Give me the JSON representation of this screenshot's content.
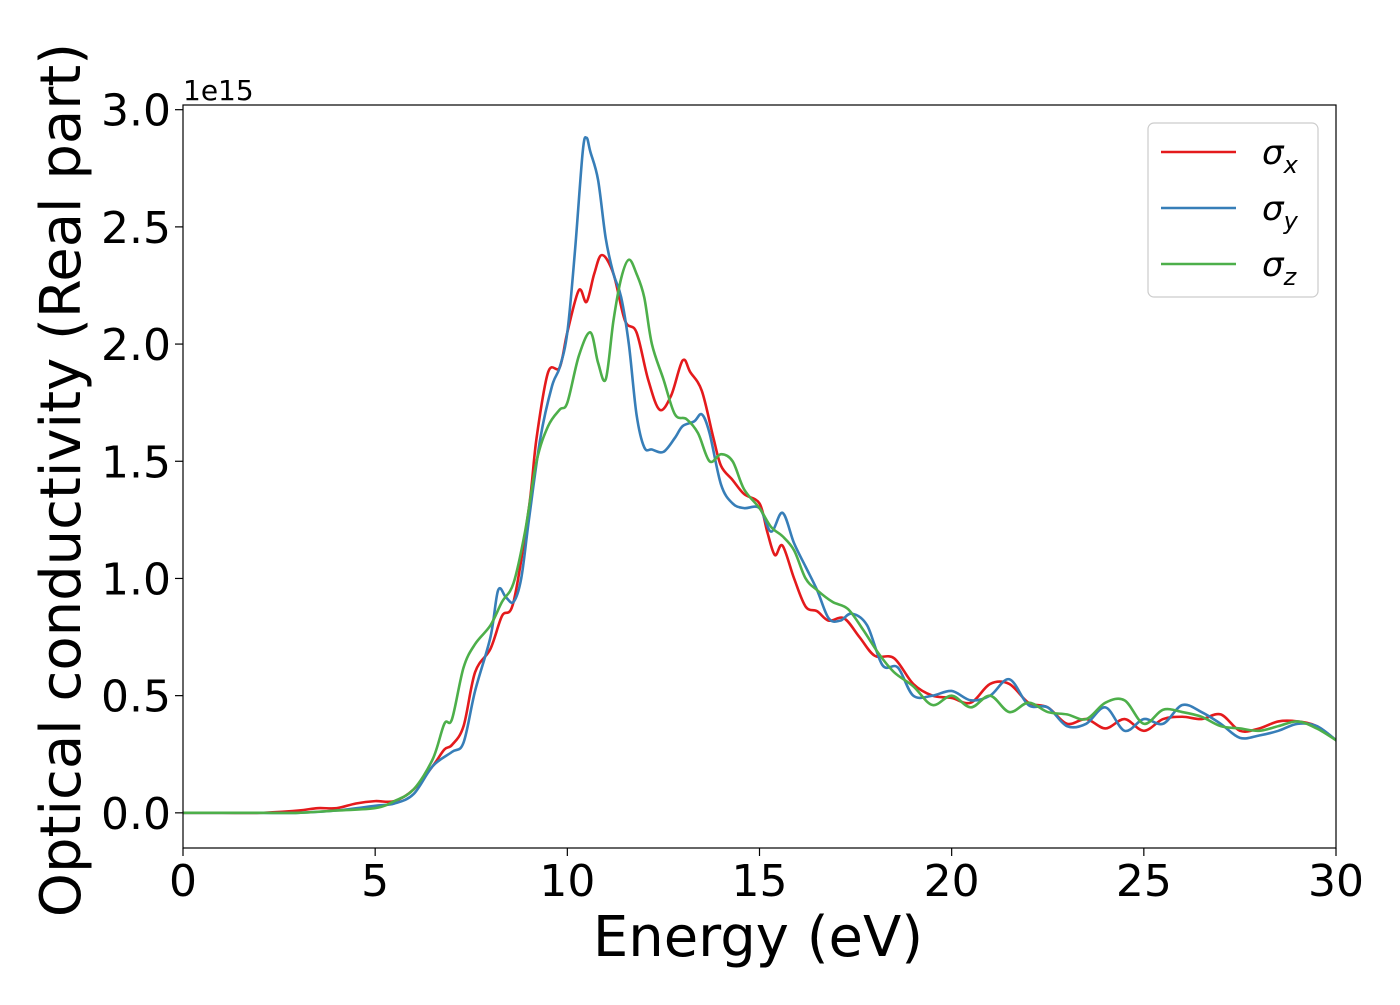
{
  "chart_data": {
    "type": "line",
    "title": "",
    "xlabel": "Energy (eV)",
    "ylabel": "Optical conductivity (Real part)",
    "y_offset_label": "1e15",
    "y_scale": 1000000000000000.0,
    "xlim": [
      0,
      30
    ],
    "ylim": [
      -0.15,
      3.02
    ],
    "xticks": [
      0,
      5,
      10,
      15,
      20,
      25,
      30
    ],
    "xtick_labels": [
      "0",
      "5",
      "10",
      "15",
      "20",
      "25",
      "30"
    ],
    "yticks": [
      0.0,
      0.5,
      1.0,
      1.5,
      2.0,
      2.5,
      3.0
    ],
    "ytick_labels": [
      "0.0",
      "0.5",
      "1.0",
      "1.5",
      "2.0",
      "2.5",
      "3.0"
    ],
    "grid": false,
    "legend_position": "top-right",
    "series": [
      {
        "name": "σ_x",
        "legend_base": "σ",
        "legend_sub": "x",
        "color": "#e41a1c",
        "x": [
          0,
          1,
          2,
          3,
          3.5,
          4,
          4.5,
          5,
          5.5,
          6,
          6.5,
          6.8,
          7,
          7.3,
          7.6,
          8,
          8.3,
          8.6,
          9,
          9.2,
          9.5,
          9.8,
          10,
          10.3,
          10.5,
          10.7,
          10.9,
          11.2,
          11.5,
          11.8,
          12.1,
          12.4,
          12.7,
          13,
          13.2,
          13.5,
          13.8,
          14,
          14.3,
          14.6,
          15,
          15.2,
          15.4,
          15.6,
          15.9,
          16.2,
          16.5,
          16.8,
          17.2,
          17.6,
          18,
          18.5,
          19,
          19.5,
          20,
          20.5,
          21,
          21.5,
          22,
          22.5,
          23,
          23.5,
          24,
          24.5,
          25,
          25.5,
          26,
          26.5,
          27,
          27.5,
          28,
          28.5,
          29,
          29.5,
          30
        ],
        "y": [
          0,
          0,
          0,
          0.01,
          0.02,
          0.02,
          0.04,
          0.05,
          0.05,
          0.1,
          0.2,
          0.27,
          0.29,
          0.37,
          0.6,
          0.7,
          0.84,
          0.9,
          1.3,
          1.6,
          1.88,
          1.9,
          2.05,
          2.23,
          2.18,
          2.3,
          2.38,
          2.3,
          2.1,
          2.05,
          1.85,
          1.72,
          1.78,
          1.93,
          1.88,
          1.8,
          1.6,
          1.48,
          1.42,
          1.36,
          1.32,
          1.2,
          1.1,
          1.14,
          1.0,
          0.88,
          0.86,
          0.82,
          0.83,
          0.75,
          0.67,
          0.66,
          0.55,
          0.5,
          0.49,
          0.47,
          0.55,
          0.55,
          0.47,
          0.45,
          0.38,
          0.4,
          0.36,
          0.4,
          0.35,
          0.4,
          0.41,
          0.4,
          0.42,
          0.35,
          0.36,
          0.39,
          0.39,
          0.37,
          0.31
        ]
      },
      {
        "name": "σ_y",
        "legend_base": "σ",
        "legend_sub": "y",
        "color": "#377eb8",
        "x": [
          0,
          1,
          2,
          3,
          4,
          5,
          5.5,
          6,
          6.5,
          7,
          7.3,
          7.6,
          8,
          8.2,
          8.4,
          8.6,
          8.8,
          9,
          9.3,
          9.6,
          9.8,
          10,
          10.2,
          10.4,
          10.5,
          10.6,
          10.8,
          11,
          11.2,
          11.4,
          11.6,
          11.8,
          12,
          12.2,
          12.5,
          12.8,
          13,
          13.3,
          13.5,
          13.7,
          14,
          14.3,
          14.6,
          15,
          15.3,
          15.6,
          15.9,
          16.2,
          16.5,
          16.8,
          17.1,
          17.4,
          17.8,
          18.2,
          18.6,
          19,
          19.5,
          20,
          20.5,
          21,
          21.5,
          22,
          22.5,
          23,
          23.5,
          24,
          24.5,
          25,
          25.5,
          26,
          26.5,
          27,
          27.5,
          28,
          28.5,
          29,
          29.5,
          30
        ],
        "y": [
          0,
          0,
          0,
          0,
          0.01,
          0.03,
          0.04,
          0.08,
          0.2,
          0.26,
          0.3,
          0.52,
          0.75,
          0.95,
          0.92,
          0.9,
          1.0,
          1.25,
          1.6,
          1.82,
          1.9,
          2.05,
          2.4,
          2.82,
          2.88,
          2.82,
          2.7,
          2.45,
          2.3,
          2.2,
          2.0,
          1.7,
          1.56,
          1.55,
          1.54,
          1.6,
          1.65,
          1.67,
          1.7,
          1.62,
          1.4,
          1.32,
          1.3,
          1.3,
          1.2,
          1.28,
          1.15,
          1.05,
          0.95,
          0.83,
          0.82,
          0.85,
          0.8,
          0.63,
          0.62,
          0.5,
          0.5,
          0.52,
          0.48,
          0.5,
          0.57,
          0.46,
          0.45,
          0.37,
          0.38,
          0.45,
          0.35,
          0.4,
          0.38,
          0.46,
          0.43,
          0.38,
          0.32,
          0.33,
          0.35,
          0.38,
          0.37,
          0.31
        ]
      },
      {
        "name": "σ_z",
        "legend_base": "σ",
        "legend_sub": "z",
        "color": "#4daf4a",
        "x": [
          0,
          1,
          2,
          3,
          4,
          5,
          5.5,
          6,
          6.5,
          6.8,
          7,
          7.3,
          7.6,
          8,
          8.3,
          8.6,
          8.9,
          9.2,
          9.5,
          9.8,
          10,
          10.3,
          10.6,
          10.8,
          11,
          11.2,
          11.4,
          11.6,
          11.8,
          12,
          12.2,
          12.5,
          12.8,
          13.1,
          13.4,
          13.7,
          14,
          14.3,
          14.6,
          15,
          15.3,
          15.6,
          15.9,
          16.2,
          16.5,
          16.9,
          17.3,
          17.7,
          18.1,
          18.5,
          19,
          19.5,
          20,
          20.5,
          21,
          21.5,
          22,
          22.5,
          23,
          23.5,
          24,
          24.5,
          25,
          25.5,
          26,
          26.5,
          27,
          27.5,
          28,
          28.5,
          29,
          29.5,
          30
        ],
        "y": [
          0,
          0,
          0,
          0,
          0.01,
          0.02,
          0.05,
          0.1,
          0.23,
          0.38,
          0.4,
          0.62,
          0.72,
          0.8,
          0.9,
          0.98,
          1.2,
          1.5,
          1.65,
          1.72,
          1.75,
          1.95,
          2.05,
          1.92,
          1.85,
          2.1,
          2.28,
          2.36,
          2.3,
          2.2,
          2.0,
          1.85,
          1.7,
          1.68,
          1.62,
          1.5,
          1.53,
          1.5,
          1.38,
          1.3,
          1.22,
          1.18,
          1.12,
          1.0,
          0.95,
          0.9,
          0.87,
          0.78,
          0.68,
          0.6,
          0.54,
          0.46,
          0.5,
          0.45,
          0.5,
          0.43,
          0.47,
          0.43,
          0.42,
          0.4,
          0.47,
          0.48,
          0.38,
          0.44,
          0.43,
          0.41,
          0.37,
          0.36,
          0.35,
          0.37,
          0.39,
          0.36,
          0.31
        ]
      }
    ]
  }
}
